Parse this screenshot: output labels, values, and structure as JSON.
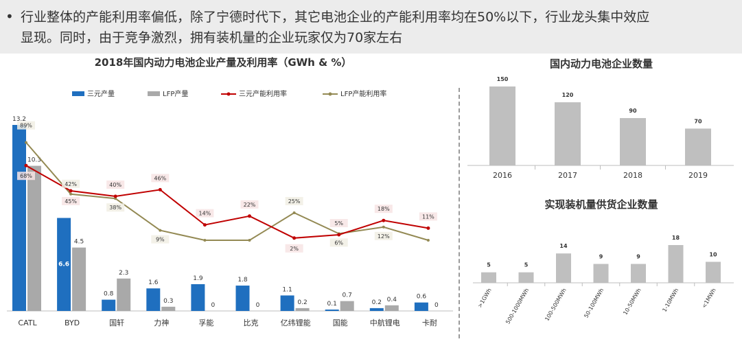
{
  "header": {
    "line1": "行业整体的产能利用率偏低，除了宁德时代下，其它电池企业的产能利用率均在50%以下，行业龙头集中效应",
    "line2": "显现。同时，由于竞争激烈，拥有装机量的企业玩家仅为70家左右"
  },
  "colors": {
    "ternary_bar": "#1f6fbf",
    "lfp_bar": "#a9a9a9",
    "ternary_line": "#c00000",
    "lfp_line": "#938953",
    "gray_bar": "#bfbfbf"
  },
  "chart_data": [
    {
      "type": "bar",
      "title": "2018年国内动力电池企业产量及利用率（GWh & %）",
      "categories": [
        "CATL",
        "BYD",
        "国轩",
        "力神",
        "孚能",
        "比克",
        "亿纬锂能",
        "国能",
        "中航锂电",
        "卡耐"
      ],
      "series": [
        {
          "name": "三元产量",
          "kind": "bar",
          "values": [
            13.2,
            6.6,
            0.8,
            1.6,
            1.9,
            1.8,
            1.1,
            0.1,
            0.2,
            0.6
          ]
        },
        {
          "name": "LFP产量",
          "kind": "bar",
          "values": [
            10.3,
            4.5,
            2.3,
            0.3,
            0,
            0,
            0.2,
            0.7,
            0.4,
            0
          ]
        },
        {
          "name": "三元产能利用率",
          "kind": "line",
          "values": [
            68,
            45,
            40,
            46,
            14,
            22,
            2,
            5,
            18,
            11
          ],
          "labels": [
            "68%",
            "45%",
            "40%",
            "46%",
            "14%",
            "22%",
            "2%",
            "5%",
            "18%",
            "11%"
          ]
        },
        {
          "name": "LFP产能利用率",
          "kind": "line",
          "values": [
            89,
            42,
            38,
            9,
            0,
            0,
            25,
            6,
            12,
            0
          ],
          "labels": [
            "89%",
            "42%",
            "38%",
            "9%",
            "",
            "",
            "25%",
            "6%",
            "12%",
            ""
          ]
        }
      ],
      "bar_labels_ternary": [
        "13.2",
        "6.6",
        "0.8",
        "1.6",
        "1.9",
        "1.8",
        "1.1",
        "0.1",
        "0.2",
        "0.6"
      ],
      "bar_labels_lfp": [
        "10.3",
        "4.5",
        "2.3",
        "0.3",
        "0",
        "0",
        "0.2",
        "0.7",
        "0.4",
        "0"
      ],
      "legend": [
        "三元产量",
        "LFP产量",
        "三元产能利用率",
        "LFP产能利用率"
      ]
    },
    {
      "type": "bar",
      "title": "国内动力电池企业数量",
      "categories": [
        "2016",
        "2017",
        "2018",
        "2019"
      ],
      "values": [
        150,
        120,
        90,
        70
      ],
      "labels": [
        "150",
        "120",
        "90",
        "70"
      ]
    },
    {
      "type": "bar",
      "title": "实现装机量供货企业数量",
      "categories": [
        ">1GWh",
        "500-1000MWh",
        "100-500MWh",
        "50-100MWh",
        "10-50MWh",
        "1-10MWh",
        "<1MWh"
      ],
      "values": [
        5,
        5,
        14,
        9,
        9,
        18,
        10
      ],
      "labels": [
        "5",
        "5",
        "14",
        "9",
        "9",
        "18",
        "10"
      ]
    }
  ]
}
